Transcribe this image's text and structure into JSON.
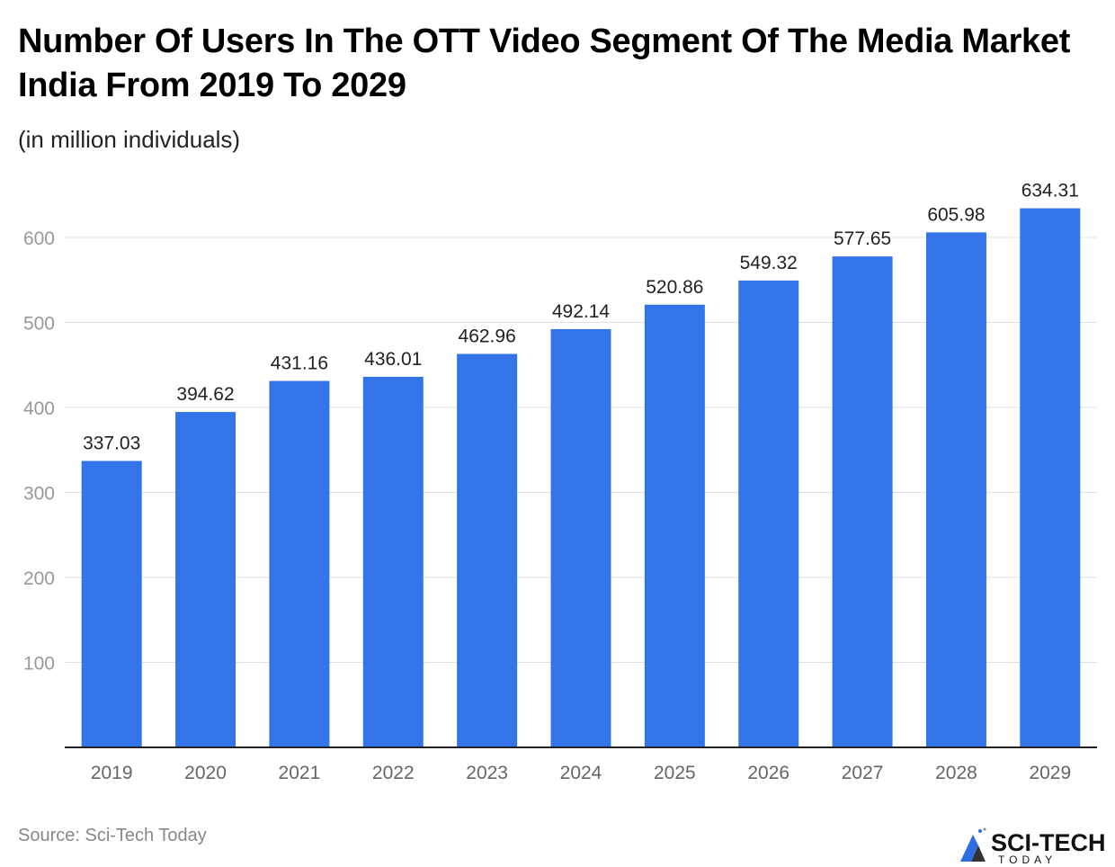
{
  "title": "Number Of Users In The OTT Video Segment Of The Media Market India From 2019 To 2029",
  "subtitle": "(in million individuals)",
  "source": "Source: Sci-Tech Today",
  "logo": {
    "text": "SCI-TECH",
    "subtext": "TODAY"
  },
  "colors": {
    "bar": "#3375E8",
    "grid": "#E0E0E0",
    "axis": "#222222",
    "tick_label": "#999999"
  },
  "chart_data": {
    "type": "bar",
    "title": "Number Of Users In The OTT Video Segment Of The Media Market India From 2019 To 2029",
    "subtitle": "(in million individuals)",
    "categories": [
      "2019",
      "2020",
      "2021",
      "2022",
      "2023",
      "2024",
      "2025",
      "2026",
      "2027",
      "2028",
      "2029"
    ],
    "values": [
      337.03,
      394.62,
      431.16,
      436.01,
      462.96,
      492.14,
      520.86,
      549.32,
      577.65,
      605.98,
      634.31
    ],
    "value_labels": [
      "337.03",
      "394.62",
      "431.16",
      "436.01",
      "462.96",
      "492.14",
      "520.86",
      "549.32",
      "577.65",
      "605.98",
      "634.31"
    ],
    "y_ticks": [
      100,
      200,
      300,
      400,
      500,
      600
    ],
    "ylim": [
      0,
      700
    ],
    "grid": true,
    "xlabel": "",
    "ylabel": ""
  }
}
